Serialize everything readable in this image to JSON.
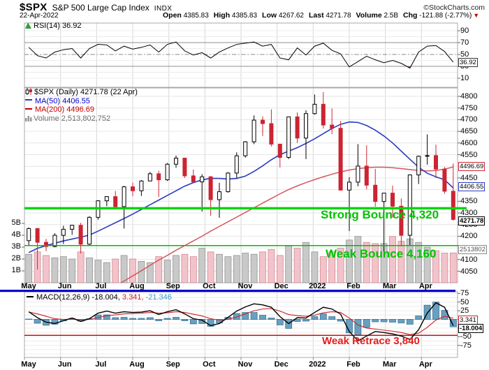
{
  "header": {
    "symbol": "$SPX",
    "name": "S&P 500 Large Cap Index",
    "exchange": "INDX",
    "copyright": "©StockCharts.com",
    "date": "22-Apr-2022",
    "open_label": "Open",
    "open": "4385.83",
    "high_label": "High",
    "high": "4385.83",
    "low_label": "Low",
    "low": "4267.62",
    "last_label": "Last",
    "last": "4271.78",
    "volume_label": "Volume",
    "volume": "2.5B",
    "chg_label": "Chg",
    "chg": "-121.88 (-2.77%)"
  },
  "colors": {
    "candle_down": "#cc2433",
    "candle_up_fill": "#ffffff",
    "candle_up_stroke": "#000000",
    "ma50": "#2a3cc0",
    "ma200": "#d5565f",
    "vol_up": "#c9c9c9",
    "vol_down": "#f2c3ca",
    "green_annotation": "#00c400",
    "red_annotation": "#e51c1c",
    "macd_line": "#000000",
    "signal_line": "#cc2028",
    "histogram": "#69a0bf",
    "separator_blue": "#0000cc"
  },
  "months": [
    "May",
    "Jun",
    "Jul",
    "Aug",
    "Sep",
    "Oct",
    "Nov",
    "Dec",
    "2022",
    "Feb",
    "Mar",
    "Apr"
  ],
  "rsi_panel": {
    "legend": "RSI(14) 36.92",
    "ticks": [
      90,
      70,
      50,
      30,
      10
    ],
    "tag": "36.92"
  },
  "price_panel": {
    "legend_title": "$SPX (Daily) 4271.78 (22 Apr)",
    "legend_ma50": "MA(50) 4406.55",
    "legend_ma200": "MA(200) 4496.69",
    "legend_volume": "Volume 2,513,802,752",
    "ticks": [
      4800,
      4750,
      4700,
      4650,
      4600,
      4550,
      4450,
      4350,
      4300,
      4250,
      4200,
      4100,
      4050
    ],
    "vol_ticks": [
      "5B",
      "4B",
      "3B",
      "2B",
      "1B"
    ],
    "tag_ma200": "4496.69",
    "tag_ma50": "4406.55",
    "tag_last": "4271.78",
    "tag_volume": "2513802",
    "annotation_strong": "Strong Bounce 4,320",
    "annotation_weak": "Weak Bounce 4,160"
  },
  "macd_panel": {
    "legend_name": "MACD(12,26,9)",
    "legend_macd": "-18.004,",
    "legend_signal": "3.341,",
    "legend_hist": "-21.346",
    "ticks": [
      75,
      50,
      25,
      0,
      -25,
      -50,
      -75
    ],
    "tag_signal": "3.341",
    "tag_macd": "-18.004",
    "annotation": "Weak Retrace 3,840"
  },
  "chart_data": [
    {
      "type": "line",
      "title": "RSI(14)",
      "ylim": [
        0,
        100
      ],
      "levels": [
        70,
        50,
        30
      ],
      "last": 36.92,
      "values": [
        62,
        48,
        44,
        54,
        58,
        60,
        44,
        60,
        67,
        66,
        56,
        64,
        59,
        62,
        66,
        54,
        67,
        71,
        56,
        49,
        53,
        44,
        54,
        61,
        67,
        69,
        71,
        64,
        67,
        44,
        41,
        61,
        49,
        64,
        69,
        57,
        51,
        29,
        38,
        47,
        41,
        36,
        40,
        35,
        27,
        54,
        64,
        65,
        55,
        37
      ]
    },
    {
      "type": "candlestick",
      "title": "$SPX Daily with MA(50), MA(200), Volume",
      "ylim": [
        4000,
        4840
      ],
      "yticks_step": 50,
      "candles_ohlc_weekly": [
        [
          4181,
          4238,
          4160,
          4233
        ],
        [
          4233,
          4236,
          4057,
          4174
        ],
        [
          4174,
          4189,
          4136,
          4156
        ],
        [
          4156,
          4213,
          4153,
          4204
        ],
        [
          4204,
          4245,
          4167,
          4230
        ],
        [
          4230,
          4249,
          4206,
          4247
        ],
        [
          4247,
          4258,
          4126,
          4166
        ],
        [
          4166,
          4286,
          4159,
          4281
        ],
        [
          4281,
          4355,
          4271,
          4352
        ],
        [
          4352,
          4372,
          4329,
          4370
        ],
        [
          4370,
          4394,
          4322,
          4327
        ],
        [
          4327,
          4416,
          4233,
          4412
        ],
        [
          4412,
          4430,
          4372,
          4395
        ],
        [
          4395,
          4441,
          4373,
          4437
        ],
        [
          4437,
          4476,
          4436,
          4468
        ],
        [
          4468,
          4481,
          4368,
          4442
        ],
        [
          4442,
          4514,
          4437,
          4509
        ],
        [
          4509,
          4546,
          4493,
          4535
        ],
        [
          4535,
          4536,
          4450,
          4459
        ],
        [
          4459,
          4486,
          4428,
          4433
        ],
        [
          4433,
          4466,
          4306,
          4455
        ],
        [
          4455,
          4458,
          4288,
          4357
        ],
        [
          4357,
          4429,
          4279,
          4391
        ],
        [
          4391,
          4475,
          4387,
          4471
        ],
        [
          4471,
          4560,
          4448,
          4545
        ],
        [
          4545,
          4608,
          4537,
          4605
        ],
        [
          4605,
          4718,
          4595,
          4698
        ],
        [
          4698,
          4714,
          4630,
          4683
        ],
        [
          4683,
          4744,
          4585,
          4595
        ],
        [
          4595,
          4595,
          4495,
          4538
        ],
        [
          4538,
          4713,
          4531,
          4712
        ],
        [
          4712,
          4731,
          4600,
          4621
        ],
        [
          4621,
          4740,
          4531,
          4726
        ],
        [
          4726,
          4808,
          4721,
          4766
        ],
        [
          4766,
          4818,
          4662,
          4677
        ],
        [
          4677,
          4748,
          4638,
          4663
        ],
        [
          4663,
          4694,
          4395,
          4398
        ],
        [
          4398,
          4453,
          4222,
          4432
        ],
        [
          4432,
          4595,
          4414,
          4501
        ],
        [
          4501,
          4590,
          4401,
          4419
        ],
        [
          4419,
          4489,
          4327,
          4349
        ],
        [
          4349,
          4385,
          4114,
          4385
        ],
        [
          4385,
          4417,
          4279,
          4329
        ],
        [
          4329,
          4362,
          4157,
          4204
        ],
        [
          4204,
          4465,
          4161,
          4463
        ],
        [
          4463,
          4546,
          4424,
          4543
        ],
        [
          4543,
          4637,
          4507,
          4546
        ],
        [
          4546,
          4593,
          4450,
          4488
        ],
        [
          4488,
          4497,
          4382,
          4393
        ],
        [
          4393,
          4512,
          4267,
          4272
        ]
      ],
      "ma50": [
        4130,
        4148,
        4160,
        4170,
        4180,
        4188,
        4196,
        4205,
        4222,
        4240,
        4258,
        4276,
        4295,
        4315,
        4335,
        4355,
        4375,
        4395,
        4415,
        4430,
        4442,
        4448,
        4448,
        4445,
        4448,
        4458,
        4478,
        4502,
        4528,
        4550,
        4565,
        4580,
        4598,
        4618,
        4640,
        4662,
        4680,
        4690,
        4688,
        4675,
        4655,
        4630,
        4600,
        4565,
        4530,
        4496,
        4470,
        4455,
        4442,
        4407
      ],
      "ma200": [
        3760,
        3785,
        3808,
        3830,
        3852,
        3875,
        3898,
        3920,
        3943,
        3965,
        3987,
        4008,
        4030,
        4052,
        4075,
        4098,
        4118,
        4140,
        4160,
        4180,
        4200,
        4222,
        4242,
        4262,
        4282,
        4302,
        4322,
        4342,
        4362,
        4382,
        4400,
        4416,
        4430,
        4443,
        4455,
        4466,
        4476,
        4484,
        4490,
        4494,
        4496,
        4496,
        4494,
        4490,
        4486,
        4482,
        4480,
        4482,
        4488,
        4497
      ],
      "volume_billions": [
        2.4,
        2.6,
        2.3,
        2.1,
        2.2,
        2.0,
        2.6,
        2.1,
        1.9,
        1.7,
        2.0,
        2.3,
        2.0,
        1.8,
        1.7,
        2.2,
        1.9,
        2.3,
        2.4,
        2.2,
        2.9,
        2.6,
        2.4,
        2.2,
        2.3,
        2.5,
        2.4,
        2.6,
        2.8,
        2.3,
        3.1,
        2.9,
        3.4,
        2.6,
        2.2,
        2.6,
        2.9,
        3.6,
        3.9,
        3.4,
        3.3,
        3.3,
        3.9,
        3.5,
        3.7,
        3.4,
        3.0,
        2.7,
        2.5,
        2.51
      ],
      "annotations": [
        {
          "label": "Strong Bounce",
          "value": 4320
        },
        {
          "label": "Weak Bounce",
          "value": 4160
        }
      ]
    },
    {
      "type": "line+histogram",
      "title": "MACD(12,26,9)",
      "last_macd": -18.004,
      "last_signal": 3.341,
      "last_hist": -21.346,
      "macd": [
        22,
        5,
        -8,
        -12,
        -4,
        4,
        -6,
        2,
        18,
        24,
        18,
        22,
        20,
        21,
        25,
        14,
        22,
        28,
        16,
        2,
        -2,
        -18,
        -12,
        6,
        24,
        36,
        45,
        42,
        35,
        8,
        -12,
        5,
        4,
        20,
        35,
        30,
        15,
        -35,
        -62,
        -48,
        -35,
        -38,
        -42,
        -48,
        -58,
        -30,
        18,
        48,
        35,
        -18
      ],
      "signal": [
        21,
        16,
        9,
        2,
        0,
        1,
        -1,
        0,
        5,
        11,
        13,
        16,
        17,
        18,
        20,
        18,
        19,
        22,
        20,
        15,
        10,
        2,
        -2,
        0,
        7,
        16,
        25,
        30,
        31,
        24,
        14,
        11,
        9,
        12,
        19,
        22,
        20,
        4,
        -16,
        -25,
        -28,
        -31,
        -34,
        -38,
        -44,
        -40,
        -23,
        -2,
        9,
        3.341
      ],
      "annotation_line_value": -46
    }
  ]
}
